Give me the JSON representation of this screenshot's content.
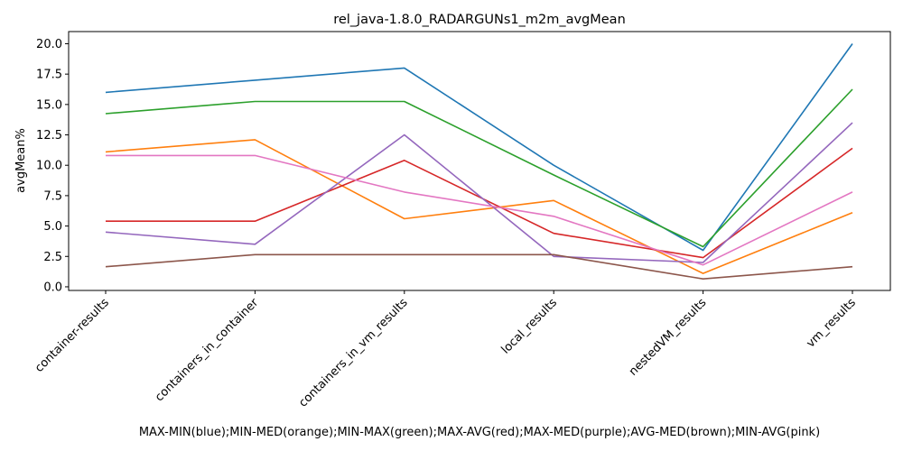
{
  "chart_data": {
    "type": "line",
    "title": "rel_java-1.8.0_RADARGUNs1_m2m_avgMean",
    "ylabel": "avgMean%",
    "xlabel": "MAX-MIN(blue);MIN-MED(orange);MIN-MAX(green);MAX-AVG(red);MAX-MED(purple);AVG-MED(brown);MIN-AVG(pink)",
    "categories": [
      "container-results",
      "containers_in_container",
      "containers_in_vm_results",
      "local_results",
      "nestedVM_results",
      "vm_results"
    ],
    "ylim": [
      -0.3,
      21.0
    ],
    "yticks": [
      "0.0",
      "2.5",
      "5.0",
      "7.5",
      "10.0",
      "12.5",
      "15.0",
      "17.5",
      "20.0"
    ],
    "grid": false,
    "series": [
      {
        "color": "#1f77b4",
        "values": [
          16.0,
          17.0,
          18.0,
          10.0,
          3.0,
          20.0
        ]
      },
      {
        "color": "#ff7f0e",
        "values": [
          11.1,
          12.1,
          5.6,
          7.1,
          1.1,
          6.1
        ]
      },
      {
        "color": "#2ca02c",
        "values": [
          14.25,
          15.25,
          15.25,
          9.2,
          3.3,
          16.25
        ]
      },
      {
        "color": "#d62728",
        "values": [
          5.4,
          5.4,
          10.4,
          4.4,
          2.4,
          11.4
        ]
      },
      {
        "color": "#9467bd",
        "values": [
          4.5,
          3.5,
          12.5,
          2.5,
          2.0,
          13.5
        ]
      },
      {
        "color": "#8c564b",
        "values": [
          1.65,
          2.65,
          2.65,
          2.65,
          0.65,
          1.65
        ]
      },
      {
        "color": "#e377c2",
        "values": [
          10.8,
          10.8,
          7.8,
          5.8,
          1.8,
          7.8
        ]
      }
    ]
  }
}
